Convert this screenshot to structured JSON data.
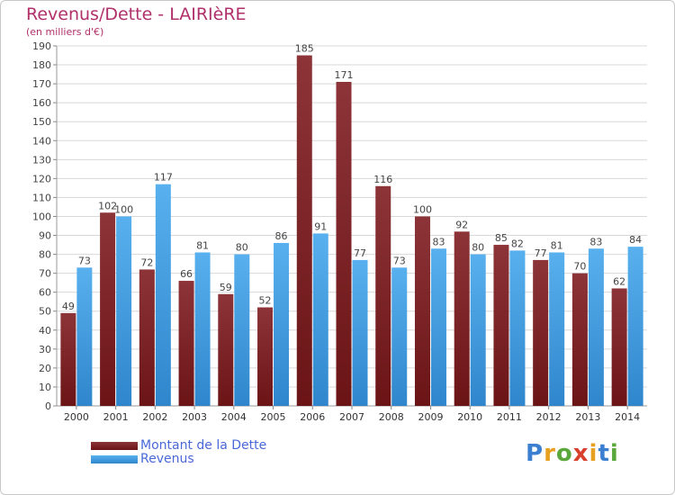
{
  "title": "Revenus/Dette - LAIRIèRE",
  "subtitle": "(en milliers d'€)",
  "logo": "Proxiti",
  "colors": {
    "dette": "#6b1416",
    "revenus": "#4aa4e4",
    "title": "#b0306a",
    "legend_text": "#4a68d8"
  },
  "chart_data": {
    "type": "bar",
    "categories": [
      "2000",
      "2001",
      "2002",
      "2003",
      "2004",
      "2005",
      "2006",
      "2007",
      "2008",
      "2009",
      "2010",
      "2011",
      "2012",
      "2013",
      "2014"
    ],
    "series": [
      {
        "name": "Montant de la Dette",
        "values": [
          49,
          102,
          72,
          66,
          59,
          52,
          185,
          171,
          116,
          100,
          92,
          85,
          77,
          70,
          62
        ]
      },
      {
        "name": "Revenus",
        "values": [
          73,
          100,
          117,
          81,
          80,
          86,
          91,
          77,
          73,
          83,
          80,
          82,
          81,
          83,
          84
        ]
      }
    ],
    "ylim": [
      0,
      190
    ],
    "yticks": [
      0,
      10,
      20,
      30,
      40,
      50,
      60,
      70,
      80,
      90,
      100,
      110,
      120,
      130,
      140,
      150,
      160,
      170,
      180,
      190
    ],
    "grid": true,
    "legend": "bottom-left"
  }
}
